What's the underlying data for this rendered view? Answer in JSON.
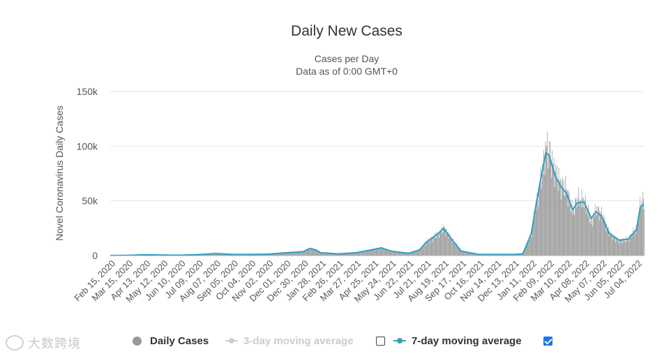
{
  "chart_data": {
    "type": "bar",
    "title": "Daily New Cases",
    "subtitle": [
      "Cases per Day",
      "Data as of 0:00 GMT+0"
    ],
    "ylabel": "Novel Coronavirus Daily Cases",
    "xlabel": "",
    "ylim": [
      0,
      150000
    ],
    "yticks": [
      {
        "value": 0,
        "label": "0"
      },
      {
        "value": 50000,
        "label": "50k"
      },
      {
        "value": 100000,
        "label": "100k"
      },
      {
        "value": 150000,
        "label": "150k"
      }
    ],
    "grid": true,
    "legend_position": "bottom",
    "x_range": [
      "2020-02-15",
      "2022-07-16"
    ],
    "xtick_labels": [
      "Feb 15, 2020",
      "Mar 15, 2020",
      "Apr 13, 2020",
      "May 12, 2020",
      "Jun 10, 2020",
      "Jul 09, 2020",
      "Aug 07, 2020",
      "Sep 05, 2020",
      "Oct 04, 2020",
      "Nov 02, 2020",
      "Dec 01, 2020",
      "Dec 30, 2020",
      "Jan 28, 2021",
      "Feb 26, 2021",
      "Mar 27, 2021",
      "Apr 25, 2021",
      "May 24, 2021",
      "Jun 22, 2021",
      "Jul 21, 2021",
      "Aug 19, 2021",
      "Sep 17, 2021",
      "Oct 16, 2021",
      "Nov 14, 2021",
      "Dec 13, 2021",
      "Jan 11, 2022",
      "Feb 09, 2022",
      "Mar 10, 2022",
      "Apr 08, 2022",
      "May 07, 2022",
      "Jun 05, 2022",
      "Jul 04, 2022"
    ],
    "series": [
      {
        "name": "Daily Cases",
        "type": "bar",
        "color": "#999999",
        "visible": true,
        "points": [
          [
            "2020-02-15",
            0
          ],
          [
            "2020-03-15",
            100
          ],
          [
            "2020-04-13",
            700
          ],
          [
            "2020-05-12",
            400
          ],
          [
            "2020-06-10",
            300
          ],
          [
            "2020-07-09",
            800
          ],
          [
            "2020-08-07",
            1800
          ],
          [
            "2020-09-05",
            1000
          ],
          [
            "2020-10-04",
            1000
          ],
          [
            "2020-11-02",
            1200
          ],
          [
            "2020-12-01",
            2500
          ],
          [
            "2020-12-30",
            3500
          ],
          [
            "2021-01-10",
            6500
          ],
          [
            "2021-01-20",
            5000
          ],
          [
            "2021-01-28",
            2500
          ],
          [
            "2021-02-26",
            1500
          ],
          [
            "2021-03-27",
            2500
          ],
          [
            "2021-04-25",
            5500
          ],
          [
            "2021-05-08",
            7000
          ],
          [
            "2021-05-24",
            4000
          ],
          [
            "2021-06-22",
            2000
          ],
          [
            "2021-07-10",
            5000
          ],
          [
            "2021-07-21",
            12000
          ],
          [
            "2021-08-10",
            20000
          ],
          [
            "2021-08-19",
            25000
          ],
          [
            "2021-09-01",
            15000
          ],
          [
            "2021-09-17",
            4000
          ],
          [
            "2021-10-16",
            1000
          ],
          [
            "2021-11-14",
            1000
          ],
          [
            "2021-12-13",
            1000
          ],
          [
            "2021-12-28",
            1500
          ],
          [
            "2022-01-11",
            20000
          ],
          [
            "2022-01-20",
            50000
          ],
          [
            "2022-01-30",
            80000
          ],
          [
            "2022-02-04",
            100000
          ],
          [
            "2022-02-09",
            95000
          ],
          [
            "2022-02-20",
            75000
          ],
          [
            "2022-03-01",
            65000
          ],
          [
            "2022-03-10",
            60000
          ],
          [
            "2022-03-20",
            40000
          ],
          [
            "2022-03-28",
            52000
          ],
          [
            "2022-04-08",
            50000
          ],
          [
            "2022-04-20",
            30000
          ],
          [
            "2022-04-28",
            42000
          ],
          [
            "2022-05-07",
            38000
          ],
          [
            "2022-05-20",
            20000
          ],
          [
            "2022-06-05",
            13000
          ],
          [
            "2022-06-20",
            15000
          ],
          [
            "2022-07-04",
            25000
          ],
          [
            "2022-07-10",
            48000
          ],
          [
            "2022-07-16",
            50000
          ]
        ]
      },
      {
        "name": "3-day moving average",
        "type": "line",
        "color": "#cccccc",
        "visible": false,
        "points": []
      },
      {
        "name": "7-day moving average",
        "type": "line",
        "color": "#3a9fbf",
        "visible": true,
        "points": [
          [
            "2020-02-15",
            0
          ],
          [
            "2020-03-15",
            100
          ],
          [
            "2020-04-13",
            700
          ],
          [
            "2020-05-12",
            400
          ],
          [
            "2020-06-10",
            300
          ],
          [
            "2020-07-09",
            800
          ],
          [
            "2020-08-07",
            1800
          ],
          [
            "2020-09-05",
            1000
          ],
          [
            "2020-10-04",
            1000
          ],
          [
            "2020-11-02",
            1200
          ],
          [
            "2020-12-01",
            2500
          ],
          [
            "2020-12-30",
            3500
          ],
          [
            "2021-01-10",
            6500
          ],
          [
            "2021-01-20",
            5000
          ],
          [
            "2021-01-28",
            2500
          ],
          [
            "2021-02-26",
            1500
          ],
          [
            "2021-03-27",
            2500
          ],
          [
            "2021-04-25",
            5500
          ],
          [
            "2021-05-08",
            7000
          ],
          [
            "2021-05-24",
            4000
          ],
          [
            "2021-06-22",
            2000
          ],
          [
            "2021-07-10",
            5000
          ],
          [
            "2021-07-21",
            12000
          ],
          [
            "2021-08-10",
            20000
          ],
          [
            "2021-08-19",
            25000
          ],
          [
            "2021-09-01",
            15000
          ],
          [
            "2021-09-17",
            4000
          ],
          [
            "2021-10-16",
            1000
          ],
          [
            "2021-11-14",
            1000
          ],
          [
            "2021-12-13",
            1000
          ],
          [
            "2021-12-28",
            1500
          ],
          [
            "2022-01-11",
            20000
          ],
          [
            "2022-01-20",
            50000
          ],
          [
            "2022-01-30",
            80000
          ],
          [
            "2022-02-04",
            94000
          ],
          [
            "2022-02-09",
            92000
          ],
          [
            "2022-02-20",
            72000
          ],
          [
            "2022-03-01",
            63000
          ],
          [
            "2022-03-10",
            57000
          ],
          [
            "2022-03-20",
            42000
          ],
          [
            "2022-03-28",
            48000
          ],
          [
            "2022-04-08",
            49000
          ],
          [
            "2022-04-20",
            34000
          ],
          [
            "2022-04-28",
            40000
          ],
          [
            "2022-05-07",
            36000
          ],
          [
            "2022-05-20",
            20000
          ],
          [
            "2022-06-05",
            14000
          ],
          [
            "2022-06-20",
            15000
          ],
          [
            "2022-07-04",
            24000
          ],
          [
            "2022-07-10",
            44000
          ],
          [
            "2022-07-16",
            47000
          ]
        ]
      }
    ]
  },
  "legend": {
    "items": [
      {
        "label": "Daily Cases",
        "symbol": "circle",
        "color": "#999999",
        "enabled": true
      },
      {
        "label": "3-day moving average",
        "symbol": "line-marker",
        "color": "#cccccc",
        "enabled": false
      },
      {
        "label": "7-day moving average",
        "symbol": "line-marker",
        "color": "#3a9fbf",
        "enabled": true
      }
    ],
    "checkbox_3day_checked": false,
    "checkbox_7day_checked": true
  },
  "watermark": {
    "text": "大数跨境"
  }
}
